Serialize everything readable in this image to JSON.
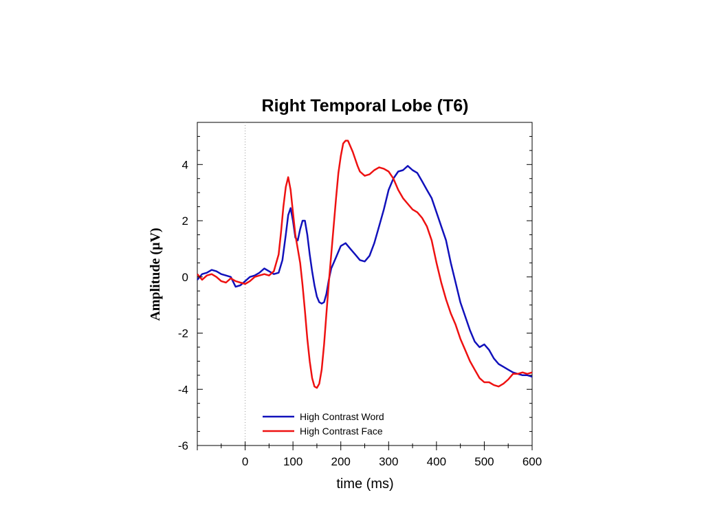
{
  "chart_data": {
    "type": "line",
    "title": "Right Temporal Lobe (T6)",
    "xlabel": "time (ms)",
    "ylabel": "Amplitude (µV)",
    "xlim": [
      -100,
      600
    ],
    "ylim": [
      -6,
      5.5
    ],
    "x_ticks": [
      0,
      100,
      200,
      300,
      400,
      500,
      600
    ],
    "y_ticks": [
      -6,
      -4,
      -2,
      0,
      2,
      4
    ],
    "grid": false,
    "reference_line_x": 0,
    "legend_position": "lower-left",
    "series": [
      {
        "name": "High Contrast Word",
        "color": "#1111bb",
        "points": [
          [
            -100,
            -0.1
          ],
          [
            -90,
            0.1
          ],
          [
            -80,
            0.15
          ],
          [
            -70,
            0.25
          ],
          [
            -60,
            0.2
          ],
          [
            -50,
            0.1
          ],
          [
            -40,
            0.05
          ],
          [
            -30,
            0.0
          ],
          [
            -20,
            -0.35
          ],
          [
            -10,
            -0.3
          ],
          [
            0,
            -0.15
          ],
          [
            10,
            0.0
          ],
          [
            20,
            0.05
          ],
          [
            30,
            0.15
          ],
          [
            40,
            0.3
          ],
          [
            50,
            0.2
          ],
          [
            60,
            0.1
          ],
          [
            70,
            0.15
          ],
          [
            78,
            0.6
          ],
          [
            85,
            1.5
          ],
          [
            90,
            2.2
          ],
          [
            95,
            2.45
          ],
          [
            100,
            2.0
          ],
          [
            105,
            1.4
          ],
          [
            110,
            1.3
          ],
          [
            115,
            1.7
          ],
          [
            120,
            2.0
          ],
          [
            125,
            2.0
          ],
          [
            130,
            1.5
          ],
          [
            135,
            0.8
          ],
          [
            140,
            0.2
          ],
          [
            145,
            -0.3
          ],
          [
            150,
            -0.7
          ],
          [
            155,
            -0.9
          ],
          [
            160,
            -0.95
          ],
          [
            165,
            -0.9
          ],
          [
            170,
            -0.6
          ],
          [
            175,
            -0.1
          ],
          [
            180,
            0.3
          ],
          [
            190,
            0.7
          ],
          [
            200,
            1.1
          ],
          [
            210,
            1.2
          ],
          [
            220,
            1.0
          ],
          [
            230,
            0.8
          ],
          [
            240,
            0.6
          ],
          [
            250,
            0.55
          ],
          [
            260,
            0.75
          ],
          [
            270,
            1.2
          ],
          [
            280,
            1.8
          ],
          [
            290,
            2.4
          ],
          [
            300,
            3.1
          ],
          [
            310,
            3.5
          ],
          [
            320,
            3.75
          ],
          [
            330,
            3.8
          ],
          [
            340,
            3.95
          ],
          [
            350,
            3.8
          ],
          [
            360,
            3.7
          ],
          [
            370,
            3.4
          ],
          [
            380,
            3.1
          ],
          [
            390,
            2.8
          ],
          [
            400,
            2.3
          ],
          [
            410,
            1.8
          ],
          [
            420,
            1.3
          ],
          [
            430,
            0.5
          ],
          [
            440,
            -0.2
          ],
          [
            450,
            -0.9
          ],
          [
            460,
            -1.4
          ],
          [
            470,
            -1.9
          ],
          [
            480,
            -2.3
          ],
          [
            490,
            -2.5
          ],
          [
            500,
            -2.4
          ],
          [
            510,
            -2.6
          ],
          [
            520,
            -2.9
          ],
          [
            530,
            -3.1
          ],
          [
            540,
            -3.2
          ],
          [
            550,
            -3.3
          ],
          [
            560,
            -3.4
          ],
          [
            570,
            -3.45
          ],
          [
            580,
            -3.5
          ],
          [
            590,
            -3.5
          ],
          [
            600,
            -3.55
          ]
        ]
      },
      {
        "name": "High Contrast Face",
        "color": "#ee1111",
        "points": [
          [
            -100,
            0.1
          ],
          [
            -90,
            -0.1
          ],
          [
            -80,
            0.05
          ],
          [
            -70,
            0.1
          ],
          [
            -60,
            0.0
          ],
          [
            -50,
            -0.15
          ],
          [
            -40,
            -0.2
          ],
          [
            -30,
            -0.05
          ],
          [
            -20,
            -0.15
          ],
          [
            -10,
            -0.2
          ],
          [
            0,
            -0.25
          ],
          [
            10,
            -0.15
          ],
          [
            20,
            0.0
          ],
          [
            30,
            0.05
          ],
          [
            40,
            0.1
          ],
          [
            50,
            0.05
          ],
          [
            60,
            0.2
          ],
          [
            70,
            0.8
          ],
          [
            75,
            1.6
          ],
          [
            80,
            2.5
          ],
          [
            85,
            3.2
          ],
          [
            90,
            3.55
          ],
          [
            95,
            3.1
          ],
          [
            100,
            2.3
          ],
          [
            105,
            1.5
          ],
          [
            110,
            1.0
          ],
          [
            115,
            0.5
          ],
          [
            120,
            -0.3
          ],
          [
            125,
            -1.2
          ],
          [
            130,
            -2.2
          ],
          [
            135,
            -3.0
          ],
          [
            140,
            -3.6
          ],
          [
            145,
            -3.9
          ],
          [
            150,
            -3.95
          ],
          [
            155,
            -3.8
          ],
          [
            160,
            -3.3
          ],
          [
            165,
            -2.4
          ],
          [
            170,
            -1.3
          ],
          [
            175,
            -0.2
          ],
          [
            180,
            0.8
          ],
          [
            185,
            1.8
          ],
          [
            190,
            2.8
          ],
          [
            195,
            3.7
          ],
          [
            200,
            4.3
          ],
          [
            205,
            4.75
          ],
          [
            210,
            4.85
          ],
          [
            215,
            4.85
          ],
          [
            220,
            4.65
          ],
          [
            225,
            4.45
          ],
          [
            230,
            4.2
          ],
          [
            235,
            3.95
          ],
          [
            240,
            3.75
          ],
          [
            250,
            3.6
          ],
          [
            260,
            3.65
          ],
          [
            270,
            3.8
          ],
          [
            280,
            3.9
          ],
          [
            290,
            3.85
          ],
          [
            300,
            3.75
          ],
          [
            310,
            3.5
          ],
          [
            320,
            3.1
          ],
          [
            330,
            2.8
          ],
          [
            340,
            2.6
          ],
          [
            350,
            2.4
          ],
          [
            360,
            2.3
          ],
          [
            370,
            2.1
          ],
          [
            380,
            1.8
          ],
          [
            390,
            1.3
          ],
          [
            400,
            0.5
          ],
          [
            410,
            -0.2
          ],
          [
            420,
            -0.8
          ],
          [
            430,
            -1.3
          ],
          [
            440,
            -1.7
          ],
          [
            450,
            -2.2
          ],
          [
            460,
            -2.6
          ],
          [
            470,
            -3.0
          ],
          [
            480,
            -3.3
          ],
          [
            490,
            -3.6
          ],
          [
            500,
            -3.75
          ],
          [
            510,
            -3.75
          ],
          [
            520,
            -3.85
          ],
          [
            530,
            -3.9
          ],
          [
            540,
            -3.8
          ],
          [
            550,
            -3.65
          ],
          [
            560,
            -3.45
          ],
          [
            570,
            -3.45
          ],
          [
            580,
            -3.4
          ],
          [
            590,
            -3.45
          ],
          [
            600,
            -3.4
          ]
        ]
      }
    ]
  }
}
